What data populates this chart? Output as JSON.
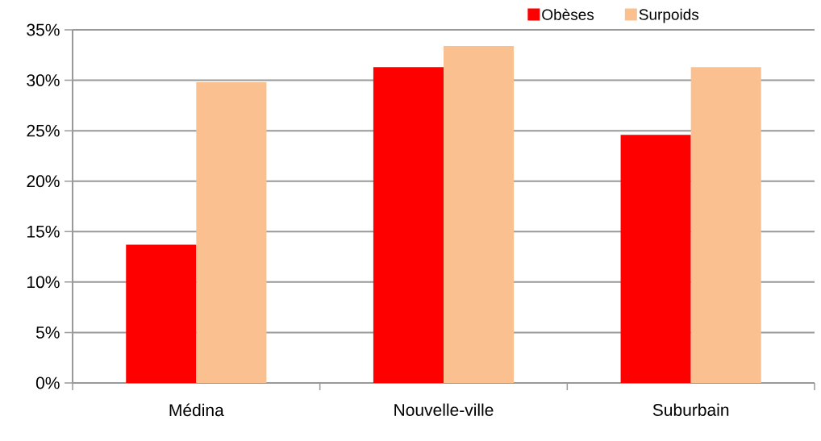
{
  "chart_data": {
    "type": "bar",
    "categories": [
      "Médina",
      "Nouvelle-ville",
      "Suburbain"
    ],
    "series": [
      {
        "name": "Obèses",
        "color": "#ff0000",
        "values": [
          13.7,
          31.3,
          24.6
        ]
      },
      {
        "name": "Surpoids",
        "color": "#fac08f",
        "values": [
          29.8,
          33.4,
          31.3
        ]
      }
    ],
    "ylim": [
      0,
      35
    ],
    "yticks": [
      {
        "value": 0,
        "label": "0%"
      },
      {
        "value": 5,
        "label": "5%"
      },
      {
        "value": 10,
        "label": "10%"
      },
      {
        "value": 15,
        "label": "15%"
      },
      {
        "value": 20,
        "label": "20%"
      },
      {
        "value": 25,
        "label": "25%"
      },
      {
        "value": 30,
        "label": "30%"
      },
      {
        "value": 35,
        "label": "35%"
      }
    ],
    "grid": "y",
    "legend": "top right"
  }
}
